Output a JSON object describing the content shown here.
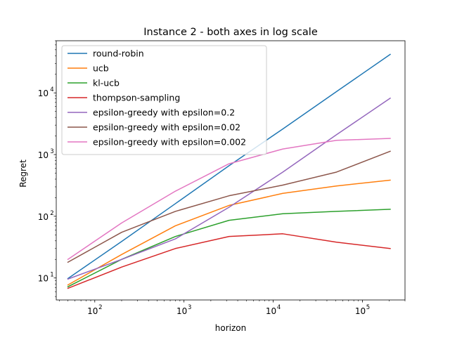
{
  "chart_data": {
    "type": "line",
    "title": "Instance 2 - both axes in log scale",
    "xlabel": "horizon",
    "ylabel": "Regret",
    "xscale": "log",
    "yscale": "log",
    "xlim": [
      37,
      300000
    ],
    "ylim": [
      4.4,
      70000
    ],
    "grid": false,
    "legend_position": "top-left",
    "x": [
      50,
      200,
      800,
      3200,
      12800,
      51200,
      204800
    ],
    "xticks": [
      {
        "value": 100,
        "base": "10",
        "exp": "2"
      },
      {
        "value": 1000,
        "base": "10",
        "exp": "3"
      },
      {
        "value": 10000,
        "base": "10",
        "exp": "4"
      },
      {
        "value": 100000,
        "base": "10",
        "exp": "5"
      }
    ],
    "yticks": [
      {
        "value": 10,
        "base": "10",
        "exp": "1"
      },
      {
        "value": 100,
        "base": "10",
        "exp": "2"
      },
      {
        "value": 1000,
        "base": "10",
        "exp": "3"
      },
      {
        "value": 10000,
        "base": "10",
        "exp": "4"
      }
    ],
    "series": [
      {
        "name": "round-robin",
        "color": "#1f77b4",
        "values": [
          9.8,
          39,
          160,
          660,
          2600,
          10500,
          42000
        ]
      },
      {
        "name": "ucb",
        "color": "#ff7f0e",
        "values": [
          7.7,
          24,
          70,
          150,
          235,
          310,
          385
        ]
      },
      {
        "name": "kl-ucb",
        "color": "#2ca02c",
        "values": [
          7.2,
          20,
          47,
          86,
          110,
          120,
          130
        ]
      },
      {
        "name": "thompson-sampling",
        "color": "#d62728",
        "values": [
          6.8,
          15,
          30,
          47,
          52,
          38,
          30
        ]
      },
      {
        "name": "epsilon-greedy with epsilon=0.2",
        "color": "#9467bd",
        "values": [
          9.6,
          20,
          43,
          140,
          520,
          2100,
          8200
        ]
      },
      {
        "name": "epsilon-greedy with epsilon=0.02",
        "color": "#8c564b",
        "values": [
          18,
          55,
          120,
          215,
          320,
          520,
          1130
        ]
      },
      {
        "name": "epsilon-greedy with epsilon=0.002",
        "color": "#e377c2",
        "values": [
          20,
          78,
          255,
          710,
          1230,
          1700,
          1830
        ]
      }
    ]
  }
}
